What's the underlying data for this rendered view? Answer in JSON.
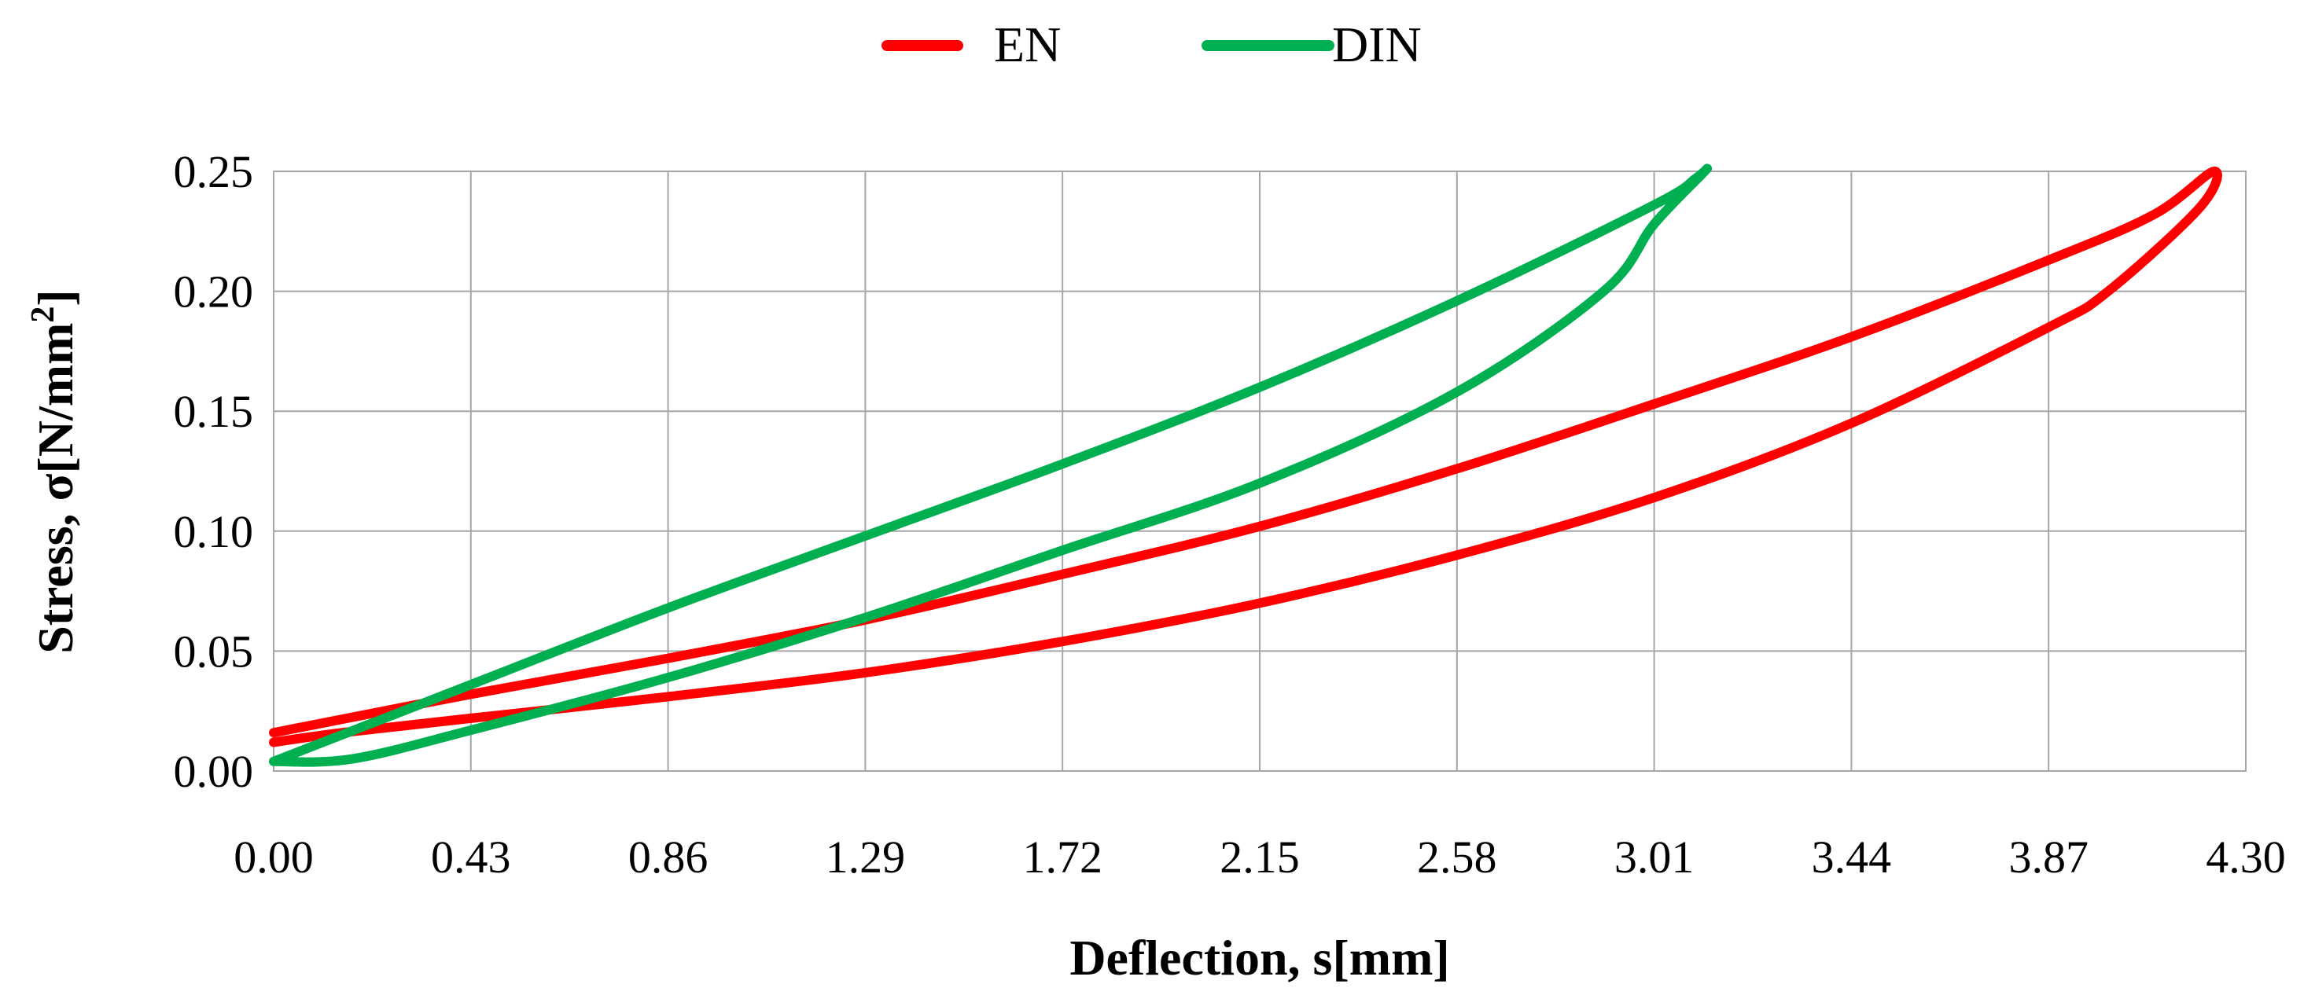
{
  "chart_data": {
    "type": "line",
    "title": "",
    "xlabel": "Deflection, s[mm]",
    "ylabel_main": "Stress, σ[N/mm",
    "ylabel_sup": "2",
    "ylabel_close": "]",
    "xlim": [
      0,
      4.3
    ],
    "ylim": [
      0,
      0.25
    ],
    "x_ticks": [
      "0.00",
      "0.43",
      "0.86",
      "1.29",
      "1.72",
      "2.15",
      "2.58",
      "3.01",
      "3.44",
      "3.87",
      "4.30"
    ],
    "y_ticks": [
      "0.00",
      "0.05",
      "0.10",
      "0.15",
      "0.20",
      "0.25"
    ],
    "x_tick_values": [
      0,
      0.43,
      0.86,
      1.29,
      1.72,
      2.15,
      2.58,
      3.01,
      3.44,
      3.87,
      4.3
    ],
    "y_tick_values": [
      0,
      0.05,
      0.1,
      0.15,
      0.2,
      0.25
    ],
    "grid": true,
    "legend_position": "top-center",
    "series": [
      {
        "name": "EN",
        "color": "#ff0000",
        "x": [
          0.0,
          0.43,
          0.86,
          1.29,
          1.72,
          2.15,
          2.58,
          3.01,
          3.44,
          3.87,
          4.1,
          4.23,
          4.2,
          4.0,
          3.87,
          3.44,
          3.01,
          2.58,
          2.15,
          1.72,
          1.29,
          0.86,
          0.43,
          0.15,
          0.0
        ],
        "y": [
          0.016,
          0.032,
          0.047,
          0.063,
          0.082,
          0.102,
          0.126,
          0.153,
          0.181,
          0.213,
          0.232,
          0.25,
          0.235,
          0.2,
          0.185,
          0.145,
          0.114,
          0.09,
          0.07,
          0.054,
          0.041,
          0.031,
          0.022,
          0.016,
          0.012
        ]
      },
      {
        "name": "DIN",
        "color": "#00b050",
        "x": [
          0.0,
          0.43,
          0.86,
          1.29,
          1.72,
          2.15,
          2.58,
          3.01,
          3.1,
          3.12,
          3.01,
          2.9,
          2.58,
          2.15,
          1.72,
          1.29,
          0.86,
          0.43,
          0.17,
          0.0
        ],
        "y": [
          0.004,
          0.036,
          0.068,
          0.098,
          0.128,
          0.16,
          0.196,
          0.236,
          0.247,
          0.25,
          0.228,
          0.2,
          0.158,
          0.12,
          0.092,
          0.064,
          0.039,
          0.017,
          0.005,
          0.004
        ]
      }
    ]
  }
}
